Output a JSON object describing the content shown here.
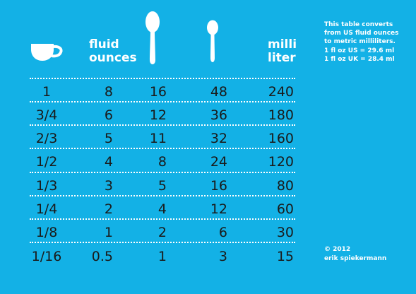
{
  "header": {
    "col_fluid_line1": "fluid",
    "col_fluid_line2": "ounces",
    "col_milli_line1": "milli",
    "col_milli_line2": "liter"
  },
  "icons": {
    "cup": "cup-icon",
    "tablespoon": "tablespoon-icon",
    "teaspoon": "teaspoon-icon"
  },
  "note": {
    "line1": "This table converts",
    "line2": "from US fluid ounces",
    "line3": "to metric milliliters.",
    "line4": "1 fl oz US = 29.6 ml",
    "line5": "1 fl oz UK = 28.4 ml"
  },
  "rows": [
    {
      "cup": "1",
      "fl_oz": "8",
      "tbsp": "16",
      "tsp": "48",
      "ml": "240"
    },
    {
      "cup": "3/4",
      "fl_oz": "6",
      "tbsp": "12",
      "tsp": "36",
      "ml": "180"
    },
    {
      "cup": "2/3",
      "fl_oz": "5",
      "tbsp": "11",
      "tsp": "32",
      "ml": "160"
    },
    {
      "cup": "1/2",
      "fl_oz": "4",
      "tbsp": "8",
      "tsp": "24",
      "ml": "120"
    },
    {
      "cup": "1/3",
      "fl_oz": "3",
      "tbsp": "5",
      "tsp": "16",
      "ml": "80"
    },
    {
      "cup": "1/4",
      "fl_oz": "2",
      "tbsp": "4",
      "tsp": "12",
      "ml": "60"
    },
    {
      "cup": "1/8",
      "fl_oz": "1",
      "tbsp": "2",
      "tsp": "6",
      "ml": "30"
    },
    {
      "cup": "1/16",
      "fl_oz": "0.5",
      "tbsp": "1",
      "tsp": "3",
      "ml": "15"
    }
  ],
  "credit": {
    "line1": "© 2012",
    "line2": "erik spiekermann"
  },
  "colors": {
    "background": "#13b1e6",
    "header_text": "#ffffff",
    "body_text": "#1a1a1a"
  }
}
